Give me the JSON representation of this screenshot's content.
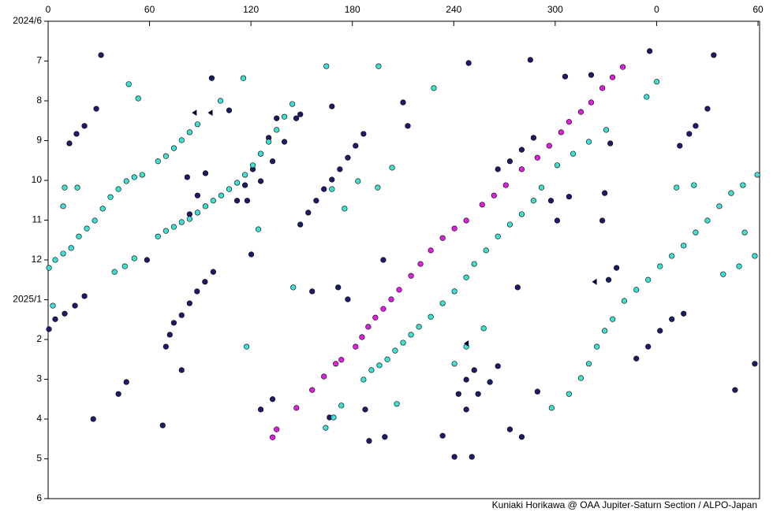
{
  "chart_data": {
    "type": "scatter",
    "credit": "Kuniaki Horikawa @ OAA Jupiter-Saturn Section / ALPO-Japan",
    "xlim": [
      0,
      420
    ],
    "xticks": [
      0,
      60,
      120,
      180,
      240,
      300,
      {
        "value": 360,
        "label": "0"
      },
      {
        "value": 420,
        "label": "60"
      }
    ],
    "ylim": [
      0,
      12
    ],
    "y_inverted": true,
    "yticks": [
      {
        "value": 0,
        "label": "2024/6"
      },
      {
        "value": 1,
        "label": "7"
      },
      {
        "value": 2,
        "label": "8"
      },
      {
        "value": 3,
        "label": "9"
      },
      {
        "value": 4,
        "label": "10"
      },
      {
        "value": 5,
        "label": "11"
      },
      {
        "value": 6,
        "label": "12"
      },
      {
        "value": 7,
        "label": "2025/1"
      },
      {
        "value": 8,
        "label": "2"
      },
      {
        "value": 9,
        "label": "3"
      },
      {
        "value": 10,
        "label": "4"
      },
      {
        "value": 11,
        "label": "5"
      },
      {
        "value": 12,
        "label": "6"
      }
    ],
    "series": [
      {
        "color": "#1c1c6b",
        "marker": "circle",
        "x": [
          0.5,
          4.2,
          9.8,
          15.9,
          21.5,
          12.6,
          16.8,
          21.5,
          69.7,
          72.0,
          74.4,
          79.0,
          83.7,
          88.1,
          92.8,
          97.7,
          111.8,
          116.5,
          121.1,
          125.8,
          130.5,
          135.2,
          149.2,
          153.9,
          158.6,
          163.2,
          167.9,
          172.6,
          177.3,
          181.9,
          186.6,
          83.7,
          88.4,
          93.1,
          117.8,
          125.8,
          132.8,
          139.8,
          146.8,
          331.6,
          336.3,
          348.0,
          355.0,
          362.0,
          369.0,
          376.0,
          242.8,
          247.4,
          252.1,
          266.1,
          273.2,
          280.2,
          287.2,
          373.7,
          379.3,
          383.1,
          247.4,
          254.4,
          261.4,
          41.6,
          46.3,
          125.8,
          132.8,
          31.3,
          28.5,
          96.8,
          82.3,
          58.5,
          167.9,
          189.9,
          199.2,
          210.0,
          212.8,
          233.4,
          240.4,
          250.7,
          248.8,
          285.3,
          355.9,
          393.8,
          390.1,
          332.6,
          305.9,
          321.3,
          327.9,
          406.4,
          418.1,
          26.7,
          67.8,
          156.2,
          171.6,
          177.3,
          166.5,
          187.6,
          273.2,
          280.2,
          289.5,
          277.8,
          301.2,
          266.1,
          297.5,
          308.2,
          329.3,
          120.2,
          79.0,
          107.1,
          149.2,
          198.3
        ],
        "y": [
          7.74,
          7.49,
          7.35,
          7.15,
          6.91,
          3.07,
          2.83,
          2.63,
          8.18,
          7.88,
          7.58,
          7.39,
          7.09,
          6.79,
          6.55,
          6.3,
          4.51,
          4.12,
          3.72,
          3.33,
          2.93,
          2.44,
          5.11,
          4.81,
          4.51,
          4.22,
          3.98,
          3.72,
          3.43,
          3.13,
          2.83,
          4.85,
          4.38,
          3.82,
          4.51,
          4.02,
          3.52,
          3.03,
          2.44,
          6.5,
          6.2,
          8.48,
          8.18,
          7.78,
          7.49,
          7.35,
          9.37,
          9.01,
          8.77,
          3.72,
          3.52,
          3.23,
          2.93,
          3.13,
          2.83,
          2.63,
          9.76,
          9.37,
          9.07,
          9.37,
          9.07,
          9.76,
          9.5,
          0.85,
          2.2,
          1.43,
          3.92,
          6.0,
          2.14,
          10.55,
          10.45,
          2.04,
          2.63,
          10.42,
          10.95,
          10.95,
          1.05,
          0.97,
          0.75,
          0.85,
          2.2,
          3.07,
          1.39,
          1.35,
          5.01,
          9.27,
          8.61,
          10.0,
          10.16,
          6.79,
          6.69,
          6.99,
          9.96,
          9.76,
          10.26,
          10.45,
          9.31,
          6.69,
          5.01,
          8.67,
          4.51,
          4.41,
          4.32,
          5.86,
          8.77,
          2.24,
          2.34,
          6.0
        ]
      },
      {
        "color": "#40e0d0",
        "marker": "circle",
        "x": [
          0.5,
          4.2,
          8.9,
          13.6,
          18.2,
          22.9,
          27.6,
          32.3,
          36.9,
          41.6,
          46.3,
          51.0,
          55.7,
          65.0,
          69.7,
          74.4,
          79.0,
          83.7,
          88.4,
          65.0,
          69.7,
          74.4,
          79.0,
          83.7,
          88.4,
          93.1,
          97.7,
          102.4,
          107.1,
          111.8,
          116.5,
          121.1,
          125.8,
          130.5,
          135.2,
          139.8,
          144.5,
          39.3,
          45.4,
          51.0,
          186.6,
          191.3,
          196.0,
          200.7,
          205.3,
          210.0,
          214.7,
          219.4,
          226.4,
          233.4,
          240.4,
          247.4,
          252.1,
          259.1,
          266.1,
          273.2,
          280.2,
          287.2,
          291.9,
          297.9,
          308.2,
          315.2,
          319.9,
          324.6,
          329.3,
          334.0,
          340.9,
          348.0,
          355.0,
          362.0,
          369.0,
          376.0,
          383.1,
          390.1,
          397.1,
          404.1,
          411.1,
          419.6,
          164.2,
          168.9,
          173.5,
          240.4,
          247.4,
          257.7,
          301.2,
          310.6,
          319.9,
          399.4,
          408.8,
          418.1,
          47.7,
          53.3,
          102.0,
          115.5,
          164.6,
          195.5,
          228.2,
          167.9,
          183.3,
          195.0,
          203.5,
          175.4,
          206.3,
          117.4,
          360.1,
          354.1,
          412.1,
          2.8,
          8.9,
          17.3,
          9.8,
          371.8,
          382.1,
          124.4,
          145.0,
          330.2
        ],
        "y": [
          6.2,
          6.0,
          5.84,
          5.7,
          5.41,
          5.21,
          5.01,
          4.71,
          4.42,
          4.22,
          4.02,
          3.92,
          3.86,
          3.52,
          3.39,
          3.19,
          2.99,
          2.79,
          2.59,
          5.41,
          5.27,
          5.17,
          5.05,
          4.97,
          4.81,
          4.65,
          4.51,
          4.38,
          4.22,
          4.06,
          3.86,
          3.62,
          3.33,
          3.03,
          2.73,
          2.4,
          2.08,
          6.3,
          6.16,
          5.96,
          9.01,
          8.77,
          8.65,
          8.5,
          8.28,
          8.08,
          7.88,
          7.68,
          7.43,
          7.09,
          6.79,
          6.44,
          6.1,
          5.76,
          5.41,
          5.11,
          4.85,
          4.51,
          4.18,
          9.72,
          9.37,
          8.97,
          8.61,
          8.18,
          7.78,
          7.49,
          7.03,
          6.75,
          6.5,
          6.16,
          5.9,
          5.64,
          5.31,
          5.01,
          4.65,
          4.32,
          4.12,
          3.86,
          10.22,
          9.96,
          9.66,
          8.61,
          8.18,
          7.72,
          3.62,
          3.33,
          3.03,
          6.36,
          6.16,
          5.9,
          1.58,
          1.94,
          2.0,
          1.43,
          1.13,
          1.13,
          1.68,
          4.22,
          4.02,
          4.18,
          3.68,
          4.71,
          9.62,
          8.18,
          1.52,
          1.9,
          5.31,
          7.15,
          4.65,
          4.18,
          4.18,
          4.18,
          4.12,
          5.23,
          6.69,
          2.73
        ]
      },
      {
        "color": "#e020e0",
        "marker": "circle",
        "x": [
          181.9,
          185.7,
          189.4,
          193.6,
          198.3,
          203.0,
          207.7,
          214.7,
          220.3,
          226.4,
          233.4,
          240.4,
          247.4,
          256.8,
          263.8,
          270.8,
          280.2,
          289.5,
          296.5,
          303.5,
          308.2,
          315.2,
          321.3,
          327.9,
          333.9,
          340.0,
          163.2,
          170.2,
          173.5,
          156.2,
          146.9,
          135.2,
          132.8
        ],
        "y": [
          8.18,
          7.94,
          7.68,
          7.45,
          7.23,
          6.99,
          6.75,
          6.4,
          6.1,
          5.76,
          5.45,
          5.21,
          5.01,
          4.61,
          4.38,
          4.12,
          3.72,
          3.43,
          3.13,
          2.79,
          2.53,
          2.28,
          2.04,
          1.68,
          1.41,
          1.15,
          8.93,
          8.61,
          8.51,
          9.27,
          9.72,
          10.26,
          10.46
        ]
      },
      {
        "color": "#000033",
        "marker": "triangle",
        "x": [
          86.5,
          95.9,
          247.4,
          323.2
        ],
        "y": [
          2.3,
          2.3,
          8.1,
          6.55
        ]
      }
    ]
  }
}
